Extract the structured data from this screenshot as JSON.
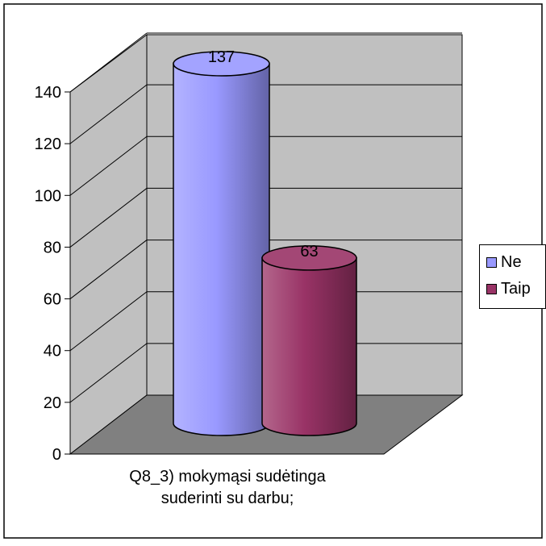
{
  "chart_data": {
    "type": "bar",
    "style": "3d-cylinder",
    "categories": [
      "Q8_3) mokymąsi sudėtinga suderinti su darbu;"
    ],
    "category_label_lines": [
      "Q8_3) mokymąsi sudėtinga",
      "suderinti su darbu;"
    ],
    "series": [
      {
        "name": "Ne",
        "values": [
          137
        ],
        "color": "#9999ff"
      },
      {
        "name": "Taip",
        "values": [
          63
        ],
        "color": "#993366"
      }
    ],
    "ylim": [
      0,
      140
    ],
    "yticks": [
      "0",
      "20",
      "40",
      "60",
      "80",
      "100",
      "120",
      "140"
    ],
    "data_labels": [
      "137",
      "63"
    ],
    "grid": true,
    "legend_position": "right",
    "colors": {
      "wall": "#c0c0c0",
      "floor": "#808080",
      "border": "#000000",
      "background": "#ffffff"
    }
  }
}
